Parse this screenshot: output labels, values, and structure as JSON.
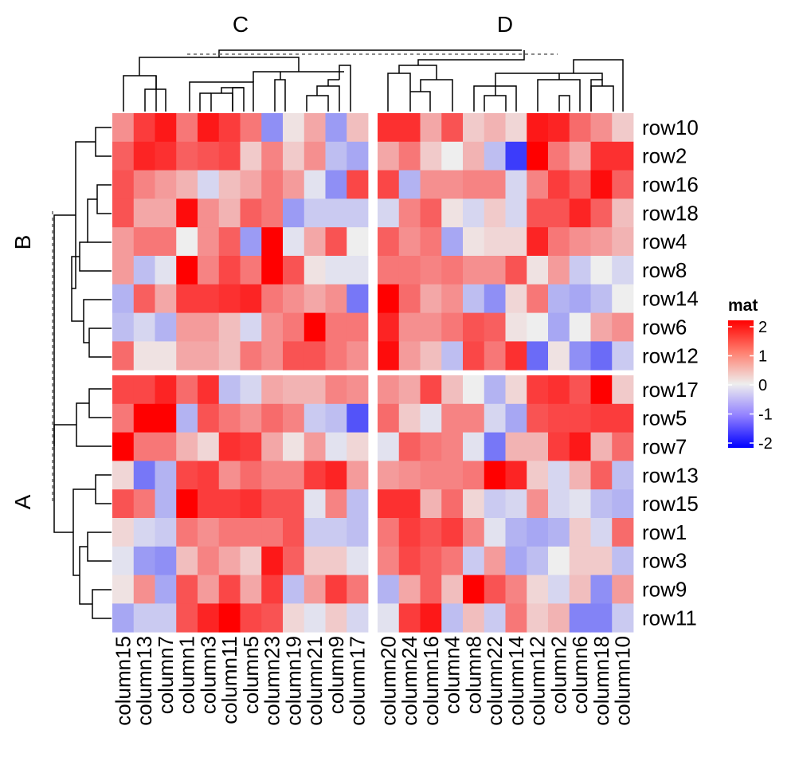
{
  "chart_data": {
    "type": "heatmap",
    "column_split_titles": [
      "C",
      "D"
    ],
    "row_split_titles": [
      "B",
      "A"
    ],
    "column_groups": [
      [
        "column15",
        "column13",
        "column7",
        "column1",
        "column3",
        "column11",
        "column5",
        "column23",
        "column19",
        "column21",
        "column9",
        "column17"
      ],
      [
        "column20",
        "column24",
        "column16",
        "column4",
        "column8",
        "column22",
        "column14",
        "column12",
        "column2",
        "column6",
        "column18",
        "column10"
      ]
    ],
    "row_groups": [
      [
        "row10",
        "row2",
        "row16",
        "row18",
        "row4",
        "row8",
        "row14",
        "row6",
        "row12"
      ],
      [
        "row17",
        "row5",
        "row7",
        "row13",
        "row15",
        "row1",
        "row3",
        "row9",
        "row11"
      ]
    ],
    "values": [
      [
        0.8,
        1.5,
        1.8,
        1.0,
        1.8,
        1.5,
        1.0,
        -0.8,
        0.1,
        0.6,
        -0.7,
        0.4,
        1.6,
        1.6,
        0.6,
        1.3,
        0.3,
        0.5,
        0.2,
        1.8,
        1.7,
        1.1,
        0.8,
        0.3
      ],
      [
        1.2,
        1.7,
        1.6,
        1.2,
        1.3,
        1.4,
        0.3,
        0.9,
        0.3,
        0.8,
        -0.4,
        -0.6,
        0.6,
        1.0,
        0.3,
        0.0,
        0.5,
        -0.4,
        -1.5,
        2.2,
        1.0,
        0.6,
        1.6,
        1.6
      ],
      [
        1.3,
        0.9,
        0.7,
        0.5,
        -0.2,
        0.4,
        0.6,
        1.0,
        0.7,
        -0.1,
        -0.8,
        1.4,
        1.4,
        -0.5,
        0.8,
        0.8,
        0.9,
        0.9,
        -0.2,
        0.9,
        1.5,
        1.2,
        1.9,
        1.2
      ],
      [
        1.3,
        0.6,
        0.6,
        1.9,
        0.8,
        0.5,
        1.2,
        1.0,
        -0.7,
        -0.3,
        -0.3,
        -0.3,
        -0.2,
        0.9,
        1.2,
        0.1,
        -0.2,
        0.3,
        -0.2,
        1.3,
        1.3,
        1.7,
        1.2,
        0.4
      ],
      [
        0.7,
        1.0,
        1.0,
        0.0,
        0.8,
        1.2,
        -0.7,
        2.0,
        -0.1,
        0.6,
        1.3,
        0.0,
        1.2,
        0.8,
        1.0,
        -0.6,
        0.1,
        0.2,
        0.2,
        1.7,
        1.0,
        0.8,
        0.7,
        0.5
      ],
      [
        0.7,
        -0.4,
        -0.1,
        2.3,
        0.9,
        1.4,
        1.0,
        2.1,
        1.3,
        0.1,
        -0.1,
        -0.1,
        1.0,
        1.0,
        0.9,
        1.0,
        0.8,
        0.8,
        1.3,
        0.1,
        0.7,
        -0.3,
        0.0,
        -0.2
      ],
      [
        -0.5,
        1.2,
        0.6,
        1.5,
        1.5,
        1.6,
        1.7,
        1.0,
        0.8,
        0.6,
        0.8,
        -1.0,
        2.0,
        1.1,
        0.6,
        0.8,
        -0.4,
        -0.8,
        0.2,
        1.0,
        -0.5,
        -0.6,
        -0.4,
        0.0
      ],
      [
        -0.4,
        -0.2,
        -0.5,
        0.7,
        0.7,
        0.4,
        -0.2,
        0.8,
        1.0,
        2.1,
        1.0,
        1.0,
        1.7,
        0.8,
        0.8,
        1.0,
        1.3,
        1.2,
        0.1,
        0.0,
        -0.6,
        0.0,
        0.6,
        0.8
      ],
      [
        1.1,
        0.1,
        0.1,
        0.6,
        0.6,
        0.4,
        1.0,
        0.8,
        1.3,
        1.3,
        1.0,
        0.8,
        1.9,
        0.7,
        0.4,
        -0.4,
        1.4,
        1.0,
        1.6,
        -1.1,
        0.1,
        -0.8,
        -1.1,
        -0.3
      ],
      [
        1.4,
        1.4,
        1.7,
        1.1,
        1.6,
        -0.4,
        -0.2,
        0.6,
        0.5,
        0.5,
        0.9,
        0.8,
        0.8,
        0.6,
        1.4,
        0.4,
        0.0,
        -0.5,
        0.2,
        1.5,
        1.6,
        1.3,
        2.3,
        0.3
      ],
      [
        1.0,
        2.3,
        2.3,
        -0.5,
        1.3,
        1.0,
        0.8,
        1.1,
        0.9,
        -0.3,
        -0.4,
        -1.3,
        1.1,
        0.3,
        -0.1,
        0.9,
        0.9,
        -0.2,
        -0.6,
        1.3,
        1.4,
        1.4,
        1.5,
        1.5
      ],
      [
        2.2,
        1.0,
        1.0,
        0.5,
        0.2,
        1.6,
        1.5,
        0.6,
        0.1,
        0.7,
        -0.1,
        0.2,
        -0.1,
        1.2,
        1.0,
        0.9,
        -0.1,
        -1.0,
        0.5,
        0.5,
        1.5,
        1.8,
        0.5,
        1.1
      ],
      [
        0.2,
        -1.0,
        -0.5,
        1.4,
        1.5,
        0.8,
        1.1,
        0.9,
        0.9,
        1.5,
        1.7,
        0.7,
        0.7,
        0.8,
        0.9,
        0.9,
        1.0,
        2.0,
        1.7,
        0.3,
        -0.2,
        0.5,
        1.2,
        -0.4
      ],
      [
        1.3,
        1.0,
        -0.5,
        2.2,
        1.5,
        1.5,
        1.6,
        1.3,
        1.3,
        -0.1,
        0.9,
        -0.4,
        1.6,
        1.6,
        0.5,
        1.1,
        0.2,
        -0.3,
        -0.2,
        0.8,
        -0.2,
        -0.1,
        -0.4,
        -0.5
      ],
      [
        0.2,
        -0.2,
        -0.3,
        1.0,
        0.8,
        1.0,
        1.0,
        1.0,
        1.3,
        -0.3,
        -0.3,
        -0.4,
        1.0,
        1.5,
        1.3,
        1.5,
        0.9,
        -0.1,
        -0.5,
        -0.6,
        -0.5,
        0.3,
        -0.2,
        1.1
      ],
      [
        -0.1,
        -0.7,
        -0.8,
        0.4,
        0.9,
        0.6,
        0.3,
        1.8,
        1.2,
        0.3,
        0.3,
        -0.1,
        0.9,
        1.4,
        1.2,
        1.0,
        -0.3,
        0.7,
        -0.6,
        -0.4,
        0.0,
        0.3,
        0.3,
        -0.4
      ],
      [
        0.1,
        0.8,
        -0.6,
        1.3,
        0.7,
        1.4,
        0.6,
        1.5,
        -0.4,
        0.7,
        1.5,
        1.0,
        -0.5,
        0.6,
        1.2,
        0.4,
        2.4,
        1.3,
        0.9,
        0.2,
        -0.2,
        0.4,
        -0.8,
        0.7
      ],
      [
        -0.6,
        -0.3,
        -0.3,
        1.3,
        1.7,
        2.0,
        1.4,
        1.3,
        0.2,
        -0.1,
        0.3,
        -0.2,
        -0.1,
        1.5,
        1.8,
        -0.4,
        0.4,
        -0.3,
        1.0,
        0.3,
        0.5,
        -0.9,
        -0.9,
        -0.3
      ]
    ],
    "legend": {
      "title": "mat",
      "ticks": [
        "2",
        "1",
        "0",
        "-1",
        "-2"
      ],
      "tick_values": [
        2,
        1,
        0,
        -1,
        -2
      ],
      "colors": {
        "low": "#0000ff",
        "mid": "#eeeeee",
        "high": "#ff0000"
      },
      "position": "right"
    },
    "dendrograms": {
      "rows": "left",
      "columns": "top"
    }
  }
}
